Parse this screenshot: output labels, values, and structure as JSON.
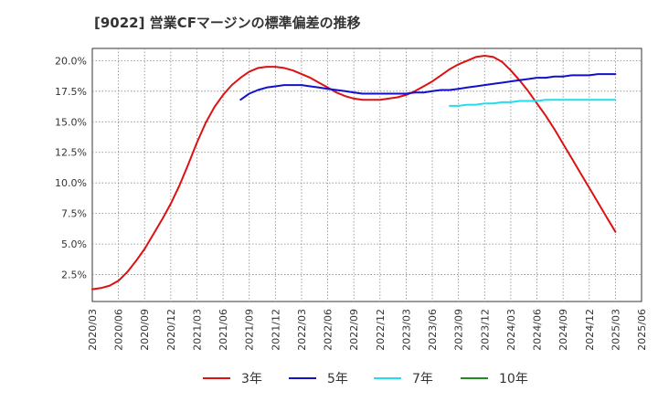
{
  "chart_data": {
    "type": "line",
    "title": "[9022]  営業CFマージンの標準偏差の推移",
    "xlabel": "",
    "ylabel": "",
    "x_ticks": [
      "2020/03",
      "2020/06",
      "2020/09",
      "2020/12",
      "2021/03",
      "2021/06",
      "2021/09",
      "2021/12",
      "2022/03",
      "2022/06",
      "2022/09",
      "2022/12",
      "2023/03",
      "2023/06",
      "2023/09",
      "2023/12",
      "2024/03",
      "2024/06",
      "2024/09",
      "2024/12",
      "2025/03",
      "2025/06"
    ],
    "y_ticks": [
      "2.5%",
      "5.0%",
      "7.5%",
      "10.0%",
      "12.5%",
      "15.0%",
      "17.5%",
      "20.0%"
    ],
    "ylim": [
      0.3,
      21.0
    ],
    "grid": true,
    "legend_position": "bottom",
    "series": [
      {
        "name": "3年",
        "color": "#dd1111",
        "points": [
          [
            "2020/03",
            1.3
          ],
          [
            "2020/04",
            1.4
          ],
          [
            "2020/05",
            1.6
          ],
          [
            "2020/06",
            2.0
          ],
          [
            "2020/07",
            2.7
          ],
          [
            "2020/08",
            3.6
          ],
          [
            "2020/09",
            4.6
          ],
          [
            "2020/10",
            5.8
          ],
          [
            "2020/11",
            7.0
          ],
          [
            "2020/12",
            8.3
          ],
          [
            "2021/01",
            9.8
          ],
          [
            "2021/02",
            11.5
          ],
          [
            "2021/03",
            13.3
          ],
          [
            "2021/04",
            14.9
          ],
          [
            "2021/05",
            16.2
          ],
          [
            "2021/06",
            17.2
          ],
          [
            "2021/07",
            18.0
          ],
          [
            "2021/08",
            18.6
          ],
          [
            "2021/09",
            19.1
          ],
          [
            "2021/10",
            19.4
          ],
          [
            "2021/11",
            19.5
          ],
          [
            "2021/12",
            19.5
          ],
          [
            "2022/01",
            19.4
          ],
          [
            "2022/02",
            19.2
          ],
          [
            "2022/03",
            18.9
          ],
          [
            "2022/04",
            18.6
          ],
          [
            "2022/05",
            18.2
          ],
          [
            "2022/06",
            17.8
          ],
          [
            "2022/07",
            17.4
          ],
          [
            "2022/08",
            17.1
          ],
          [
            "2022/09",
            16.9
          ],
          [
            "2022/10",
            16.8
          ],
          [
            "2022/11",
            16.8
          ],
          [
            "2022/12",
            16.8
          ],
          [
            "2023/01",
            16.9
          ],
          [
            "2023/02",
            17.0
          ],
          [
            "2023/03",
            17.2
          ],
          [
            "2023/04",
            17.5
          ],
          [
            "2023/05",
            17.9
          ],
          [
            "2023/06",
            18.3
          ],
          [
            "2023/07",
            18.8
          ],
          [
            "2023/08",
            19.3
          ],
          [
            "2023/09",
            19.7
          ],
          [
            "2023/10",
            20.0
          ],
          [
            "2023/11",
            20.3
          ],
          [
            "2023/12",
            20.4
          ],
          [
            "2024/01",
            20.3
          ],
          [
            "2024/02",
            19.9
          ],
          [
            "2024/03",
            19.2
          ],
          [
            "2024/04",
            18.4
          ],
          [
            "2024/05",
            17.5
          ],
          [
            "2024/06",
            16.5
          ],
          [
            "2024/07",
            15.5
          ],
          [
            "2024/08",
            14.4
          ],
          [
            "2024/09",
            13.2
          ],
          [
            "2024/10",
            12.0
          ],
          [
            "2024/11",
            10.8
          ],
          [
            "2024/12",
            9.6
          ],
          [
            "2025/01",
            8.4
          ],
          [
            "2025/02",
            7.2
          ],
          [
            "2025/03",
            6.0
          ]
        ]
      },
      {
        "name": "5年",
        "color": "#1111cc",
        "points": [
          [
            "2021/08",
            16.8
          ],
          [
            "2021/09",
            17.3
          ],
          [
            "2021/10",
            17.6
          ],
          [
            "2021/11",
            17.8
          ],
          [
            "2021/12",
            17.9
          ],
          [
            "2022/01",
            18.0
          ],
          [
            "2022/02",
            18.0
          ],
          [
            "2022/03",
            18.0
          ],
          [
            "2022/04",
            17.9
          ],
          [
            "2022/05",
            17.8
          ],
          [
            "2022/06",
            17.7
          ],
          [
            "2022/07",
            17.6
          ],
          [
            "2022/08",
            17.5
          ],
          [
            "2022/09",
            17.4
          ],
          [
            "2022/10",
            17.3
          ],
          [
            "2022/11",
            17.3
          ],
          [
            "2022/12",
            17.3
          ],
          [
            "2023/01",
            17.3
          ],
          [
            "2023/02",
            17.3
          ],
          [
            "2023/03",
            17.3
          ],
          [
            "2023/04",
            17.4
          ],
          [
            "2023/05",
            17.4
          ],
          [
            "2023/06",
            17.5
          ],
          [
            "2023/07",
            17.6
          ],
          [
            "2023/08",
            17.6
          ],
          [
            "2023/09",
            17.7
          ],
          [
            "2023/10",
            17.8
          ],
          [
            "2023/11",
            17.9
          ],
          [
            "2023/12",
            18.0
          ],
          [
            "2024/01",
            18.1
          ],
          [
            "2024/02",
            18.2
          ],
          [
            "2024/03",
            18.3
          ],
          [
            "2024/04",
            18.4
          ],
          [
            "2024/05",
            18.5
          ],
          [
            "2024/06",
            18.6
          ],
          [
            "2024/07",
            18.6
          ],
          [
            "2024/08",
            18.7
          ],
          [
            "2024/09",
            18.7
          ],
          [
            "2024/10",
            18.8
          ],
          [
            "2024/11",
            18.8
          ],
          [
            "2024/12",
            18.8
          ],
          [
            "2025/01",
            18.9
          ],
          [
            "2025/02",
            18.9
          ],
          [
            "2025/03",
            18.9
          ]
        ]
      },
      {
        "name": "7年",
        "color": "#22ddee",
        "points": [
          [
            "2023/08",
            16.3
          ],
          [
            "2023/09",
            16.3
          ],
          [
            "2023/10",
            16.4
          ],
          [
            "2023/11",
            16.4
          ],
          [
            "2023/12",
            16.5
          ],
          [
            "2024/01",
            16.5
          ],
          [
            "2024/02",
            16.6
          ],
          [
            "2024/03",
            16.6
          ],
          [
            "2024/04",
            16.7
          ],
          [
            "2024/05",
            16.7
          ],
          [
            "2024/06",
            16.7
          ],
          [
            "2024/07",
            16.8
          ],
          [
            "2024/08",
            16.8
          ],
          [
            "2024/09",
            16.8
          ],
          [
            "2024/10",
            16.8
          ],
          [
            "2024/11",
            16.8
          ],
          [
            "2024/12",
            16.8
          ],
          [
            "2025/01",
            16.8
          ],
          [
            "2025/02",
            16.8
          ],
          [
            "2025/03",
            16.8
          ]
        ]
      },
      {
        "name": "10年",
        "color": "#228b22",
        "points": []
      }
    ]
  }
}
